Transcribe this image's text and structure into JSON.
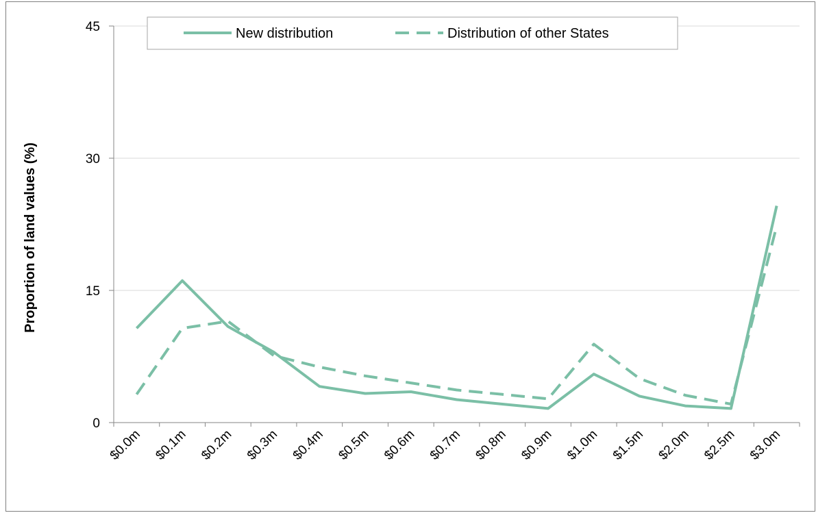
{
  "chart_data": {
    "type": "line",
    "title": "",
    "xlabel": "",
    "ylabel": "Proportion of land values (%)",
    "categories": [
      "$0.0m",
      "$0.1m",
      "$0.2m",
      "$0.3m",
      "$0.4m",
      "$0.5m",
      "$0.6m",
      "$0.7m",
      "$0.8m",
      "$0.9m",
      "$1.0m",
      "$1.5m",
      "$2.0m",
      "$2.5m",
      "$3.0m"
    ],
    "ylim": [
      0,
      45
    ],
    "yticks": [
      0,
      15,
      30,
      45
    ],
    "grid": "horizontal",
    "legend_position": "top",
    "series": [
      {
        "name": "New distribution",
        "style": "solid",
        "color": "#7bbfa6",
        "values": [
          10.7,
          16.1,
          10.9,
          8.0,
          4.1,
          3.3,
          3.5,
          2.6,
          2.1,
          1.6,
          5.5,
          3.0,
          1.9,
          1.6,
          24.6
        ]
      },
      {
        "name": "Distribution of other States",
        "style": "dashed",
        "color": "#7bbfa6",
        "values": [
          3.2,
          10.7,
          11.5,
          7.6,
          6.3,
          5.3,
          4.5,
          3.7,
          3.2,
          2.7,
          8.9,
          5.0,
          3.1,
          2.1,
          22.3
        ]
      }
    ]
  },
  "colors": {
    "series": "#7bbfa6",
    "grid": "#d9d9d9",
    "axis": "#868686"
  }
}
